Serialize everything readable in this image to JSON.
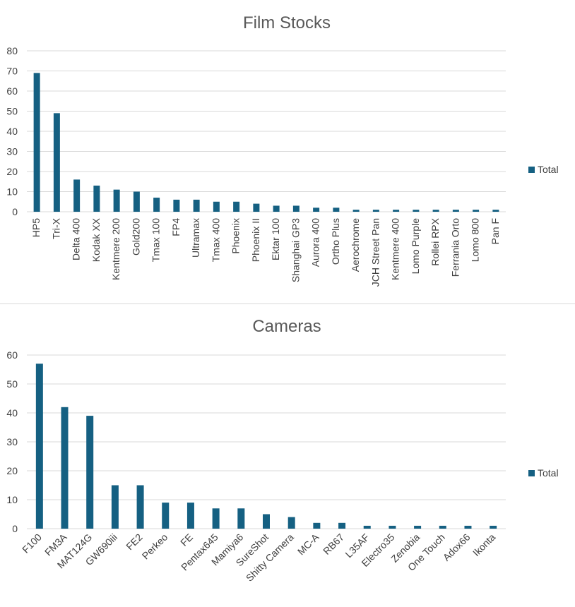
{
  "chart_data": [
    {
      "type": "bar",
      "title": "Film Stocks",
      "xlabel": "",
      "ylabel": "",
      "ylim": [
        0,
        80
      ],
      "yticks": [
        0,
        10,
        20,
        30,
        40,
        50,
        60,
        70,
        80
      ],
      "grid": true,
      "legend_position": "right",
      "bar_color": "#156082",
      "categories": [
        "HP5",
        "Tri-X",
        "Delta 400",
        "Kodak XX",
        "Kentmere 200",
        "Gold200",
        "Tmax 100",
        "FP4",
        "Ultramax",
        "Tmax 400",
        "Phoenix",
        "Phoenix II",
        "Ektar 100",
        "Shanghai GP3",
        "Aurora 400",
        "Ortho Plus",
        "Aerochrome",
        "JCH Street Pan",
        "Kentmere 400",
        "Lomo Purple",
        "Rollei RPX",
        "Ferrania Orto",
        "Lomo 800",
        "Pan F"
      ],
      "series": [
        {
          "name": "Total",
          "values": [
            69,
            49,
            16,
            13,
            11,
            10,
            7,
            6,
            6,
            5,
            5,
            4,
            3,
            3,
            2,
            2,
            1,
            1,
            1,
            1,
            1,
            1,
            1,
            1
          ]
        }
      ]
    },
    {
      "type": "bar",
      "title": "Cameras",
      "xlabel": "",
      "ylabel": "",
      "ylim": [
        0,
        60
      ],
      "yticks": [
        0,
        10,
        20,
        30,
        40,
        50,
        60
      ],
      "grid": true,
      "legend_position": "right",
      "bar_color": "#156082",
      "categories": [
        "F100",
        "FM3A",
        "MAT124G",
        "GW690iii",
        "FE2",
        "Perkeo",
        "FE",
        "Pentax645",
        "Mamiya6",
        "SureShot",
        "Shitty Camera",
        "MC-A",
        "RB67",
        "L35AF",
        "Electro35",
        "Zenobia",
        "One Touch",
        "Adox66",
        "Ikonta"
      ],
      "series": [
        {
          "name": "Total",
          "values": [
            57,
            42,
            39,
            15,
            15,
            9,
            9,
            7,
            7,
            5,
            4,
            2,
            2,
            1,
            1,
            1,
            1,
            1,
            1
          ]
        }
      ]
    }
  ]
}
